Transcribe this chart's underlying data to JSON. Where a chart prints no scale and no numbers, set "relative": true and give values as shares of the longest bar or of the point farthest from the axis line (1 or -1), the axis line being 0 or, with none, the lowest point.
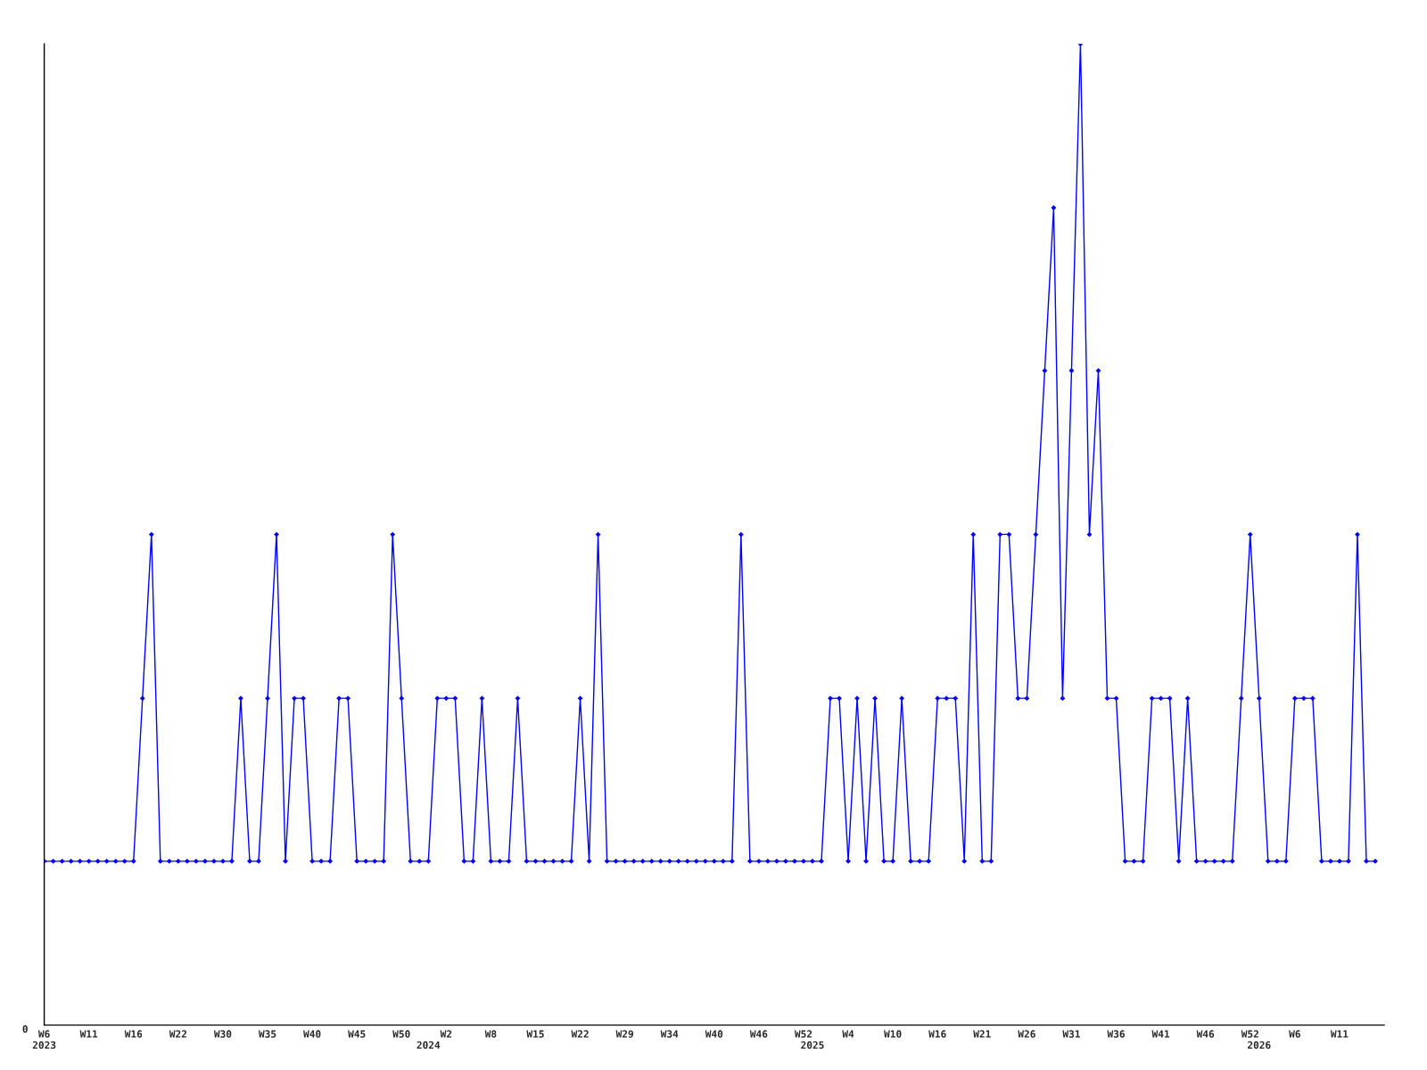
{
  "chart_data": {
    "type": "line",
    "relative": true,
    "categories": [
      "W6\n2023",
      null,
      null,
      null,
      null,
      "W11",
      null,
      null,
      null,
      null,
      "W16",
      null,
      null,
      null,
      null,
      "W22",
      null,
      null,
      null,
      null,
      "W30",
      null,
      null,
      null,
      null,
      "W35",
      null,
      null,
      null,
      null,
      "W40",
      null,
      null,
      null,
      null,
      "W45",
      null,
      null,
      null,
      null,
      "W50",
      null,
      null,
      "\n2024",
      null,
      "W2",
      null,
      null,
      null,
      null,
      "W8",
      null,
      null,
      null,
      null,
      "W15",
      null,
      null,
      null,
      null,
      "W22",
      null,
      null,
      null,
      null,
      "W29",
      null,
      null,
      null,
      null,
      "W34",
      null,
      null,
      null,
      null,
      "W40",
      null,
      null,
      null,
      null,
      "W46",
      null,
      null,
      null,
      null,
      "W52",
      "\n2025",
      null,
      null,
      null,
      "W4",
      null,
      null,
      null,
      null,
      "W10",
      null,
      null,
      null,
      null,
      "W16",
      null,
      null,
      null,
      null,
      "W21",
      null,
      null,
      null,
      null,
      "W26",
      null,
      null,
      null,
      null,
      "W31",
      null,
      null,
      null,
      null,
      "W36",
      null,
      null,
      null,
      null,
      "W41",
      null,
      null,
      null,
      null,
      "W46",
      null,
      null,
      null,
      null,
      "W52",
      "\n2026",
      null,
      null,
      null,
      "W6",
      null,
      null,
      null,
      null,
      "W11",
      null,
      null,
      null,
      null
    ],
    "series": [
      {
        "color": "#0000ff",
        "values": [
          0.167,
          0.167,
          0.167,
          0.167,
          0.167,
          0.167,
          0.167,
          0.167,
          0.167,
          0.167,
          0.167,
          0.333,
          0.5,
          0.167,
          0.167,
          0.167,
          0.167,
          0.167,
          0.167,
          0.167,
          0.167,
          0.167,
          0.333,
          0.167,
          0.167,
          0.333,
          0.5,
          0.167,
          0.333,
          0.333,
          0.167,
          0.167,
          0.167,
          0.333,
          0.333,
          0.167,
          0.167,
          0.167,
          0.167,
          0.5,
          0.333,
          0.167,
          0.167,
          0.167,
          0.333,
          0.333,
          0.333,
          0.167,
          0.167,
          0.333,
          0.167,
          0.167,
          0.167,
          0.333,
          0.167,
          0.167,
          0.167,
          0.167,
          0.167,
          0.167,
          0.333,
          0.167,
          0.5,
          0.167,
          0.167,
          0.167,
          0.167,
          0.167,
          0.167,
          0.167,
          0.167,
          0.167,
          0.167,
          0.167,
          0.167,
          0.167,
          0.167,
          0.167,
          0.5,
          0.167,
          0.167,
          0.167,
          0.167,
          0.167,
          0.167,
          0.167,
          0.167,
          0.167,
          0.333,
          0.333,
          0.167,
          0.333,
          0.167,
          0.333,
          0.167,
          0.167,
          0.333,
          0.167,
          0.167,
          0.167,
          0.333,
          0.333,
          0.333,
          0.167,
          0.5,
          0.167,
          0.167,
          0.5,
          0.5,
          0.333,
          0.333,
          0.5,
          0.667,
          0.833,
          0.333,
          0.667,
          1,
          0.5,
          0.667,
          0.333,
          0.333,
          0.167,
          0.167,
          0.167,
          0.333,
          0.333,
          0.333,
          0.167,
          0.333,
          0.167,
          0.167,
          0.167,
          0.167,
          0.167,
          0.333,
          0.5,
          0.333,
          0.167,
          0.167,
          0.167,
          0.333,
          0.333,
          0.333,
          0.167,
          0.167,
          0.167,
          0.167,
          0.5,
          0.167,
          0.167
        ]
      }
    ],
    "annotations": [
      "0"
    ],
    "marker": "diamond",
    "line_style": "solid",
    "grid": false
  }
}
